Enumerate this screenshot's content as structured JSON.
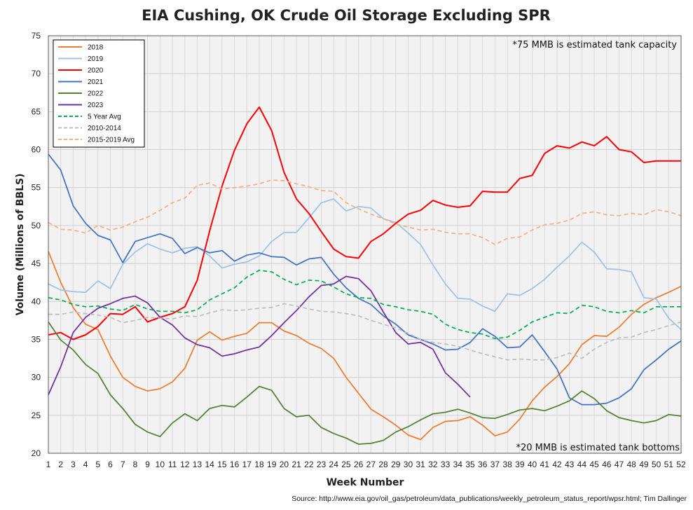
{
  "chart_data": {
    "type": "line",
    "title": "EIA Cushing, OK Crude Oil Storage Excluding SPR",
    "xlabel": "Week Number",
    "ylabel": "Volume (Millions of BBLS)",
    "xlim": [
      1,
      52
    ],
    "ylim": [
      20,
      75
    ],
    "yticks": [
      20,
      25,
      30,
      35,
      40,
      45,
      50,
      55,
      60,
      65,
      70,
      75
    ],
    "xticks": [
      1,
      2,
      3,
      4,
      5,
      6,
      7,
      8,
      9,
      10,
      11,
      12,
      13,
      14,
      15,
      16,
      17,
      18,
      19,
      20,
      21,
      22,
      23,
      24,
      25,
      26,
      27,
      28,
      29,
      30,
      31,
      32,
      33,
      34,
      35,
      36,
      37,
      38,
      39,
      40,
      41,
      42,
      43,
      44,
      45,
      46,
      47,
      48,
      49,
      50,
      51,
      52
    ],
    "grid": true,
    "legend_position": "top-left",
    "annotations": {
      "capacity": "*75 MMB is estimated tank capacity",
      "bottoms": "*20 MMB is estimated tank bottoms"
    },
    "source": "Source: http://www.eia.gov/oil_gas/petroleum/data_publications/weekly_petroleum_status_report/wpsr.html; Tim Dallinger",
    "series": [
      {
        "name": "2018",
        "color": "#ED7D31",
        "dash": "solid",
        "values": [
          46.6,
          42.5,
          39.2,
          37.0,
          36.3,
          32.8,
          30.0,
          28.8,
          28.2,
          28.5,
          29.4,
          31.2,
          34.9,
          36.0,
          34.9,
          35.4,
          35.8,
          37.2,
          37.2,
          36.1,
          35.5,
          34.5,
          33.8,
          32.5,
          30.0,
          27.9,
          25.8,
          24.8,
          23.7,
          22.4,
          21.8,
          23.4,
          24.2,
          24.3,
          24.8,
          23.7,
          22.3,
          22.8,
          24.5,
          26.9,
          28.7,
          30.1,
          31.8,
          34.3,
          35.5,
          35.4,
          36.6,
          38.3,
          39.6,
          40.5,
          41.2,
          42.0
        ]
      },
      {
        "name": "2019",
        "color": "#9DC3E6",
        "dash": "solid",
        "values": [
          42.3,
          41.5,
          41.3,
          41.2,
          42.7,
          41.7,
          44.9,
          46.5,
          47.6,
          46.9,
          46.4,
          47.0,
          47.2,
          46.0,
          44.4,
          44.9,
          45.2,
          46.0,
          47.9,
          49.1,
          49.1,
          51.0,
          53.0,
          53.5,
          51.9,
          52.5,
          52.3,
          50.9,
          50.4,
          49.0,
          47.5,
          44.8,
          42.3,
          40.4,
          40.3,
          39.4,
          38.7,
          41.0,
          40.8,
          41.7,
          42.9,
          44.5,
          46.0,
          47.8,
          46.5,
          44.3,
          44.2,
          43.9,
          40.5,
          40.3,
          37.8,
          36.3
        ]
      },
      {
        "name": "2020",
        "color": "#FF0000",
        "dash": "solid",
        "values": [
          35.6,
          35.9,
          35.0,
          35.6,
          36.7,
          38.4,
          38.3,
          39.3,
          37.3,
          37.9,
          38.4,
          39.3,
          42.8,
          49.3,
          55.2,
          59.9,
          63.4,
          65.6,
          62.5,
          57.0,
          53.5,
          51.6,
          49.2,
          46.9,
          45.9,
          45.7,
          47.9,
          48.9,
          50.3,
          51.5,
          52.0,
          53.3,
          52.7,
          52.4,
          52.6,
          54.5,
          54.4,
          54.4,
          56.2,
          56.6,
          59.5,
          60.5,
          60.2,
          61.0,
          60.5,
          61.7,
          60.0,
          59.7,
          58.3,
          58.5,
          58.5,
          58.5
        ]
      },
      {
        "name": "2021",
        "color": "#4472C4",
        "dash": "solid",
        "values": [
          59.4,
          57.3,
          52.6,
          50.3,
          48.7,
          48.1,
          45.1,
          47.9,
          48.4,
          48.9,
          48.3,
          46.3,
          47.1,
          46.4,
          46.7,
          45.3,
          46.1,
          46.4,
          45.9,
          45.8,
          44.8,
          45.6,
          45.8,
          43.6,
          41.8,
          40.4,
          39.6,
          38.1,
          37.0,
          35.6,
          35.0,
          34.4,
          33.6,
          33.7,
          34.6,
          36.4,
          35.4,
          33.9,
          34.0,
          35.6,
          33.4,
          31.1,
          27.3,
          26.4,
          26.4,
          26.6,
          27.3,
          28.5,
          31.0,
          32.3,
          33.7,
          34.8
        ]
      },
      {
        "name": "2022",
        "color": "#548235",
        "dash": "solid",
        "values": [
          37.3,
          34.9,
          33.6,
          31.7,
          30.5,
          27.7,
          25.9,
          23.8,
          22.8,
          22.2,
          24.0,
          25.2,
          24.3,
          25.9,
          26.3,
          26.1,
          27.4,
          28.8,
          28.3,
          25.9,
          24.8,
          25.0,
          23.4,
          22.6,
          22.0,
          21.2,
          21.3,
          21.7,
          22.8,
          23.5,
          24.4,
          25.2,
          25.4,
          25.8,
          25.3,
          24.7,
          24.6,
          25.1,
          25.7,
          25.9,
          25.6,
          26.2,
          26.9,
          28.2,
          27.2,
          25.6,
          24.7,
          24.3,
          24.0,
          24.3,
          25.1,
          24.9
        ]
      },
      {
        "name": "2023",
        "color": "#7030A0",
        "dash": "solid",
        "values": [
          27.7,
          31.4,
          35.9,
          37.9,
          39.1,
          39.7,
          40.4,
          40.7,
          39.8,
          37.9,
          36.9,
          35.2,
          34.3,
          33.9,
          32.8,
          33.1,
          33.6,
          34.0,
          35.5,
          37.2,
          38.8,
          40.6,
          42.1,
          42.3,
          43.3,
          43.0,
          41.4,
          38.6,
          35.9,
          34.4,
          34.6,
          33.7,
          30.6,
          29.1,
          27.4
        ]
      },
      {
        "name": "5 Year Avg",
        "color": "#00B050",
        "dash": "dash",
        "values": [
          40.5,
          40.2,
          39.6,
          39.3,
          39.4,
          39.0,
          38.8,
          39.6,
          39.0,
          38.7,
          38.7,
          38.5,
          38.9,
          40.2,
          41.0,
          41.8,
          43.2,
          44.1,
          43.9,
          42.9,
          42.2,
          42.8,
          42.7,
          41.9,
          41.0,
          40.5,
          40.4,
          39.6,
          39.3,
          38.9,
          38.7,
          38.3,
          37.0,
          36.3,
          35.9,
          35.7,
          35.1,
          35.3,
          36.2,
          37.3,
          37.9,
          38.5,
          38.4,
          39.5,
          39.3,
          38.7,
          38.5,
          38.8,
          38.5,
          39.3,
          39.3,
          39.3
        ]
      },
      {
        "name": "2010-2014",
        "color": "#BFBFBF",
        "dash": "dash",
        "values": [
          38.3,
          38.3,
          38.6,
          38.4,
          38.2,
          37.9,
          37.2,
          37.5,
          37.9,
          37.8,
          37.7,
          38.1,
          38.0,
          38.5,
          38.9,
          38.8,
          38.9,
          39.1,
          39.2,
          39.7,
          39.4,
          39.0,
          38.7,
          38.6,
          38.4,
          38.1,
          37.5,
          37.0,
          36.5,
          35.8,
          35.0,
          34.6,
          34.4,
          34.1,
          33.6,
          33.1,
          32.7,
          32.3,
          32.4,
          32.3,
          32.3,
          32.6,
          33.2,
          32.5,
          33.7,
          34.6,
          35.2,
          35.3,
          35.9,
          36.3,
          36.8,
          37.3
        ]
      },
      {
        "name": "2015-2019 Avg",
        "color": "#F4B183",
        "dash": "dash",
        "values": [
          50.4,
          49.5,
          49.4,
          49.0,
          50.0,
          49.4,
          49.8,
          50.5,
          51.1,
          52.0,
          53.0,
          53.6,
          55.3,
          55.6,
          54.8,
          55.0,
          55.2,
          55.5,
          56.0,
          55.9,
          55.5,
          55.1,
          54.6,
          54.5,
          53.0,
          52.2,
          51.5,
          50.9,
          50.2,
          49.8,
          49.4,
          49.5,
          49.1,
          48.9,
          48.9,
          48.4,
          47.5,
          48.3,
          48.5,
          49.4,
          50.1,
          50.3,
          50.7,
          51.6,
          51.8,
          51.4,
          51.3,
          51.6,
          51.4,
          52.1,
          51.8,
          51.3
        ]
      }
    ]
  }
}
